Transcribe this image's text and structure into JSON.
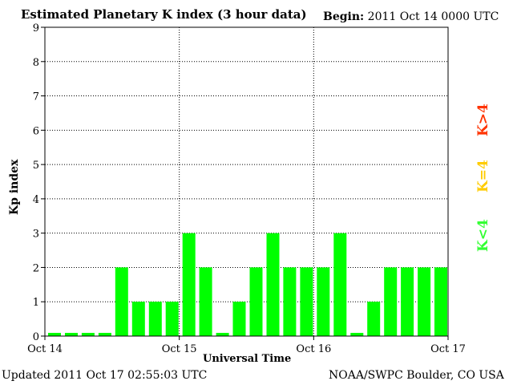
{
  "header": {
    "title": "Estimated Planetary K index (3 hour data)",
    "begin_label": "Begin:",
    "begin_value": "2011 Oct 14 0000 UTC"
  },
  "footer": {
    "updated": "Updated 2011 Oct 17 02:55:03 UTC",
    "credit": "NOAA/SWPC Boulder, CO USA"
  },
  "legend": {
    "low": "K<4",
    "equal": "K=4",
    "high": "K>4"
  },
  "colors": {
    "low": "#00ff00",
    "equal": "#ffcc00",
    "high": "#ff3300"
  },
  "chart_data": {
    "type": "bar",
    "title": "Estimated Planetary K index (3 hour data)",
    "xlabel": "Universal Time",
    "ylabel": "Kp index",
    "ylim": [
      0,
      9
    ],
    "yticks": [
      "0",
      "1",
      "2",
      "3",
      "4",
      "5",
      "6",
      "7",
      "8",
      "9"
    ],
    "xticks": [
      "Oct 14",
      "Oct 15",
      "Oct 16",
      "Oct 17"
    ],
    "grid": true,
    "values": [
      0,
      0,
      0,
      0,
      2,
      1,
      1,
      1,
      3,
      2,
      0,
      1,
      2,
      3,
      2,
      2,
      2,
      3,
      0,
      1,
      2,
      2,
      2,
      2
    ]
  }
}
